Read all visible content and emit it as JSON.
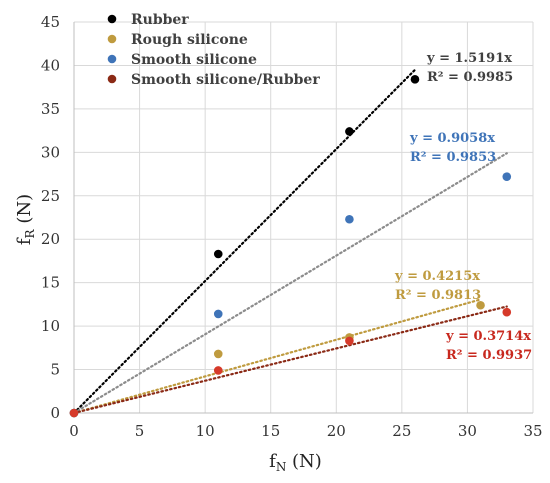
{
  "chart_data": {
    "type": "scatter",
    "xlabel": {
      "main": "f",
      "sub": "N",
      "unit": "(N)"
    },
    "ylabel": {
      "main": "f",
      "sub": "R",
      "unit": "(N)"
    },
    "xlim": [
      0,
      35
    ],
    "ylim": [
      0,
      45
    ],
    "xticks": [
      "0",
      "5",
      "10",
      "15",
      "20",
      "25",
      "30",
      "35"
    ],
    "yticks": [
      "0",
      "5",
      "10",
      "15",
      "20",
      "25",
      "30",
      "35",
      "40",
      "45"
    ],
    "grid": true,
    "legend_position": "top-left",
    "series": [
      {
        "name": "Rubber",
        "color": "#000000",
        "trend_color": "#000000",
        "points": [
          [
            0,
            0
          ],
          [
            11,
            18.3
          ],
          [
            21,
            32.4
          ],
          [
            26,
            38.4
          ]
        ],
        "trend": {
          "slope": 1.5191,
          "x_end": 26,
          "equation": "y = 1.5191x",
          "r2": "R² = 0.9985",
          "label_color": "#404040"
        }
      },
      {
        "name": "Rough silicone",
        "color": "#bf9b3f",
        "trend_color": "#bf9b3f",
        "points": [
          [
            0,
            0
          ],
          [
            11,
            6.8
          ],
          [
            21,
            8.7
          ],
          [
            31,
            12.4
          ]
        ],
        "trend": {
          "slope": 0.4215,
          "x_end": 31,
          "equation": "y = 0.4215x",
          "r2": "R² = 0.9813",
          "label_color": "#bf9b3f"
        }
      },
      {
        "name": "Smooth silicone",
        "color": "#3f74b8",
        "trend_color": "#8c8c8c",
        "points": [
          [
            0,
            0
          ],
          [
            11,
            11.4
          ],
          [
            21,
            22.3
          ],
          [
            33,
            27.2
          ]
        ],
        "trend": {
          "slope": 0.9058,
          "x_end": 33,
          "equation": "y = 0.9058x",
          "r2": "R² = 0.9853",
          "label_color": "#3f74b8"
        }
      },
      {
        "name": "Smooth silicone/Rubber",
        "color": "#8b2a16",
        "point_color": "#d63a2a",
        "trend_color": "#8b2a16",
        "points": [
          [
            0,
            0
          ],
          [
            11,
            4.9
          ],
          [
            21,
            8.3
          ],
          [
            33,
            11.6
          ]
        ],
        "trend": {
          "slope": 0.3714,
          "x_end": 33,
          "equation": "y = 0.3714x",
          "r2": "R² = 0.9937",
          "label_color": "#c8281e"
        }
      }
    ]
  }
}
